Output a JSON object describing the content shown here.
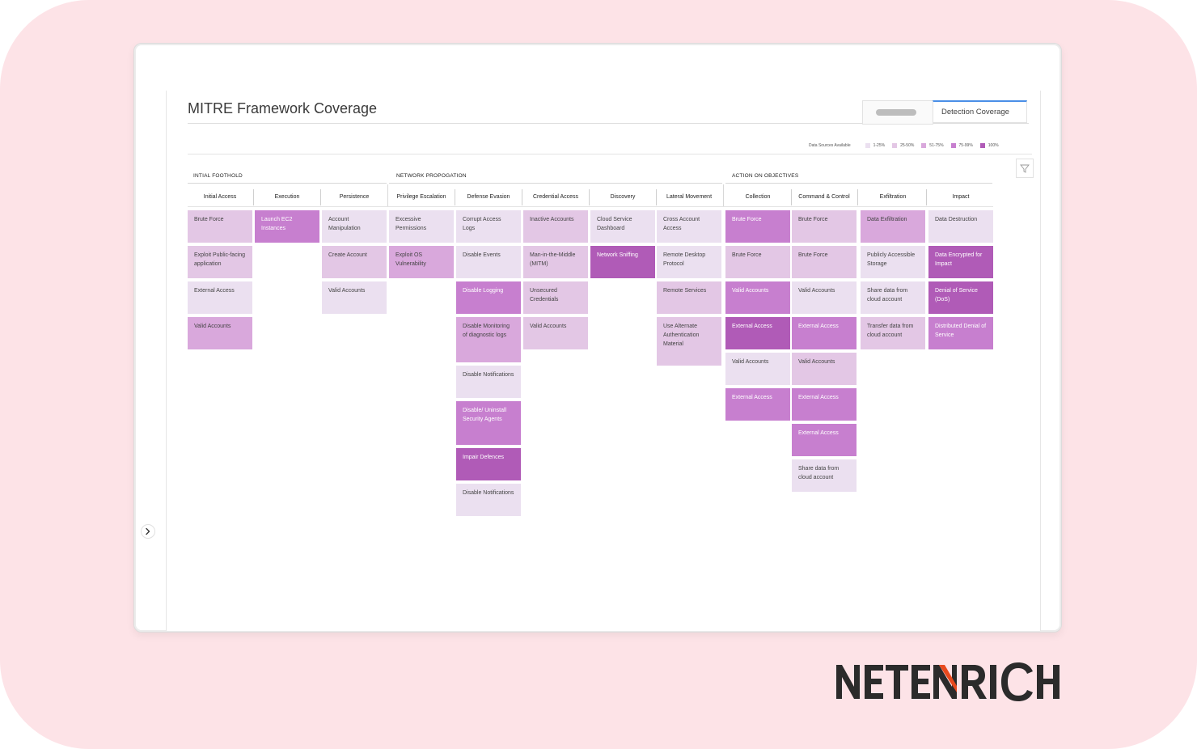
{
  "page_title": "MITRE Framework Coverage",
  "tabs": [
    {
      "label": ""
    },
    {
      "label": "Detection Coverage"
    }
  ],
  "legend": {
    "title": "Data Sources Available",
    "items": [
      {
        "label": "1-25%",
        "color": "#ebe0f0"
      },
      {
        "label": "25-50%",
        "color": "#e3c7e5"
      },
      {
        "label": "51-75%",
        "color": "#d9a8dc"
      },
      {
        "label": "75-99%",
        "color": "#c77fcf"
      },
      {
        "label": "100%",
        "color": "#b05bb7"
      }
    ]
  },
  "groups": [
    {
      "label": "INTIAL FOOTHOLD"
    },
    {
      "label": "NETWORK PROPOGATION"
    },
    {
      "label": "ACTION ON OBJECTIVES"
    }
  ],
  "columns": [
    {
      "label": "Initial Access",
      "cells": [
        {
          "text": "Brute Force",
          "level": 2
        },
        {
          "text": "Exploit Public-facing application",
          "level": 2
        },
        {
          "text": "External Access",
          "level": 1
        },
        {
          "text": "Valid Accounts",
          "level": 3
        }
      ]
    },
    {
      "label": "Execution",
      "cells": [
        {
          "text": "Launch EC2 Instances",
          "level": 4
        }
      ]
    },
    {
      "label": "Persistence",
      "cells": [
        {
          "text": "Account Manipulation",
          "level": 1
        },
        {
          "text": "Create Account",
          "level": 2
        },
        {
          "text": "Valid Accounts",
          "level": 1
        }
      ]
    },
    {
      "label": "Privilege Escalation",
      "cells": [
        {
          "text": "Excessive Permissions",
          "level": 1
        },
        {
          "text": "Exploit OS Vulnerability",
          "level": 3
        }
      ]
    },
    {
      "label": "Defense Evasion",
      "cells": [
        {
          "text": "Corrupt Access Logs",
          "level": 1
        },
        {
          "text": "Disable Events",
          "level": 1
        },
        {
          "text": "Disable Logging",
          "level": 4
        },
        {
          "text": "Disable Monitoring of diagnostic logs",
          "level": 3
        },
        {
          "text": "Disable Notifications",
          "level": 1
        },
        {
          "text": "Disable/ Uninstall Security Agents",
          "level": 4
        },
        {
          "text": "Impair Defences",
          "level": 5
        },
        {
          "text": "Disable Notifications",
          "level": 1
        }
      ]
    },
    {
      "label": "Credential Access",
      "cells": [
        {
          "text": "Inactive Accounts",
          "level": 2
        },
        {
          "text": "Man-in-the-Middle (MITM)",
          "level": 2
        },
        {
          "text": "Unsecured Credentials",
          "level": 2
        },
        {
          "text": "Valid Accounts",
          "level": 2
        }
      ]
    },
    {
      "label": "Discovery",
      "cells": [
        {
          "text": "Cloud Service Dashboard",
          "level": 1
        },
        {
          "text": "Network Sniffing",
          "level": 5
        }
      ]
    },
    {
      "label": "Lateral Movement",
      "cells": [
        {
          "text": "Cross Account Access",
          "level": 1
        },
        {
          "text": "Remote Desktop Protocol",
          "level": 1
        },
        {
          "text": "Remote Services",
          "level": 2
        },
        {
          "text": "Use Alternate Authentication Material",
          "level": 2
        }
      ]
    },
    {
      "label": "Collection",
      "cells": [
        {
          "text": "Brute Force",
          "level": 4
        },
        {
          "text": "Brute Force",
          "level": 2
        },
        {
          "text": "Valid Accounts",
          "level": 4
        },
        {
          "text": "External Access",
          "level": 5
        },
        {
          "text": "Valid Accounts",
          "level": 1
        },
        {
          "text": "External Access",
          "level": 4
        }
      ]
    },
    {
      "label": "Command & Control",
      "cells": [
        {
          "text": "Brute Force",
          "level": 2
        },
        {
          "text": "Brute Force",
          "level": 2
        },
        {
          "text": "Valid Accounts",
          "level": 1
        },
        {
          "text": "External Access",
          "level": 4
        },
        {
          "text": "Valid Accounts",
          "level": 2
        },
        {
          "text": "External Access",
          "level": 4
        },
        {
          "text": "External Access",
          "level": 4
        },
        {
          "text": "Share data from cloud account",
          "level": 1
        }
      ]
    },
    {
      "label": "Exfiltration",
      "cells": [
        {
          "text": "Data Exfiltration",
          "level": 3
        },
        {
          "text": "Publicly Accessible Storage",
          "level": 1
        },
        {
          "text": "Share data from cloud account",
          "level": 1
        },
        {
          "text": "Transfer data from cloud account",
          "level": 2
        }
      ]
    },
    {
      "label": "Impact",
      "cells": [
        {
          "text": "Data Destruction",
          "level": 1
        },
        {
          "text": "Data Encrypted for Impact",
          "level": 5
        },
        {
          "text": "Denial of Service (DoS)",
          "level": 5
        },
        {
          "text": "Distributed Denial of Service",
          "level": 4
        }
      ]
    }
  ],
  "brand": {
    "name": "NETENRICH",
    "accent": "#e8491d",
    "text_color": "#2b2b2b"
  }
}
